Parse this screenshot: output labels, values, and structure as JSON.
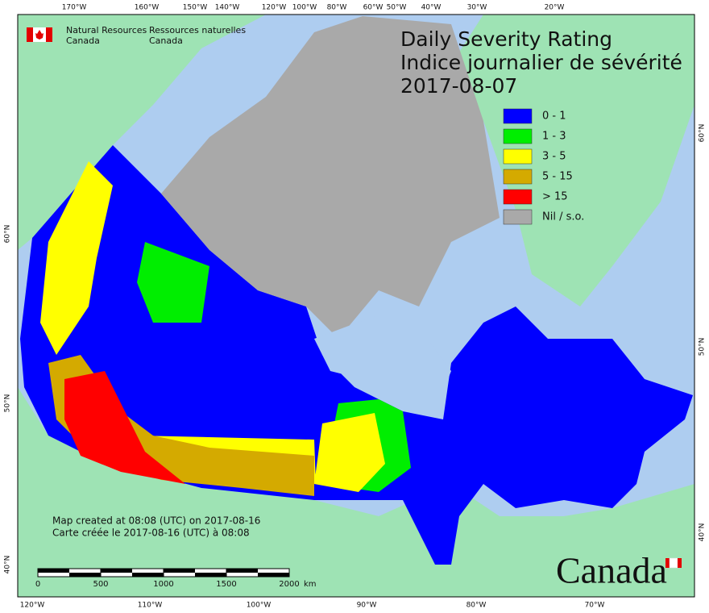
{
  "header": {
    "org_en": [
      "Natural Resources",
      "Canada"
    ],
    "org_fr": [
      "Ressources naturelles",
      "Canada"
    ]
  },
  "title": [
    "Daily Severity Rating",
    "Indice journalier de sévérité",
    "2017-08-07"
  ],
  "legend": [
    {
      "label": "0 - 1",
      "color": "#0000ff"
    },
    {
      "label": "1 - 3",
      "color": "#00ee00"
    },
    {
      "label": "3 - 5",
      "color": "#ffff00"
    },
    {
      "label": "5 - 15",
      "color": "#d4aa00"
    },
    {
      "label": "> 15",
      "color": "#ff0000"
    },
    {
      "label": "Nil / s.o.",
      "color": "#a9a9a9"
    }
  ],
  "graticule": {
    "top": [
      "170°W",
      "160°W",
      "150°W",
      "140°W",
      "120°W",
      "100°W",
      "80°W",
      "60°W",
      "50°W",
      "40°W",
      "30°W",
      "20°W"
    ],
    "bottom": [
      "120°W",
      "110°W",
      "100°W",
      "90°W",
      "80°W",
      "70°W"
    ],
    "left": [
      "60°N",
      "50°N",
      "40°N"
    ],
    "right": [
      "60°N",
      "50°N",
      "40°N"
    ]
  },
  "footer": [
    "Map created at 08:08 (UTC) on 2017-08-16",
    "Carte créée le 2017-08-16 (UTC) à 08:08"
  ],
  "scale_bar": {
    "ticks": [
      0,
      500,
      1000,
      1500,
      2000
    ],
    "unit": "km"
  },
  "wordmark": "Canada"
}
